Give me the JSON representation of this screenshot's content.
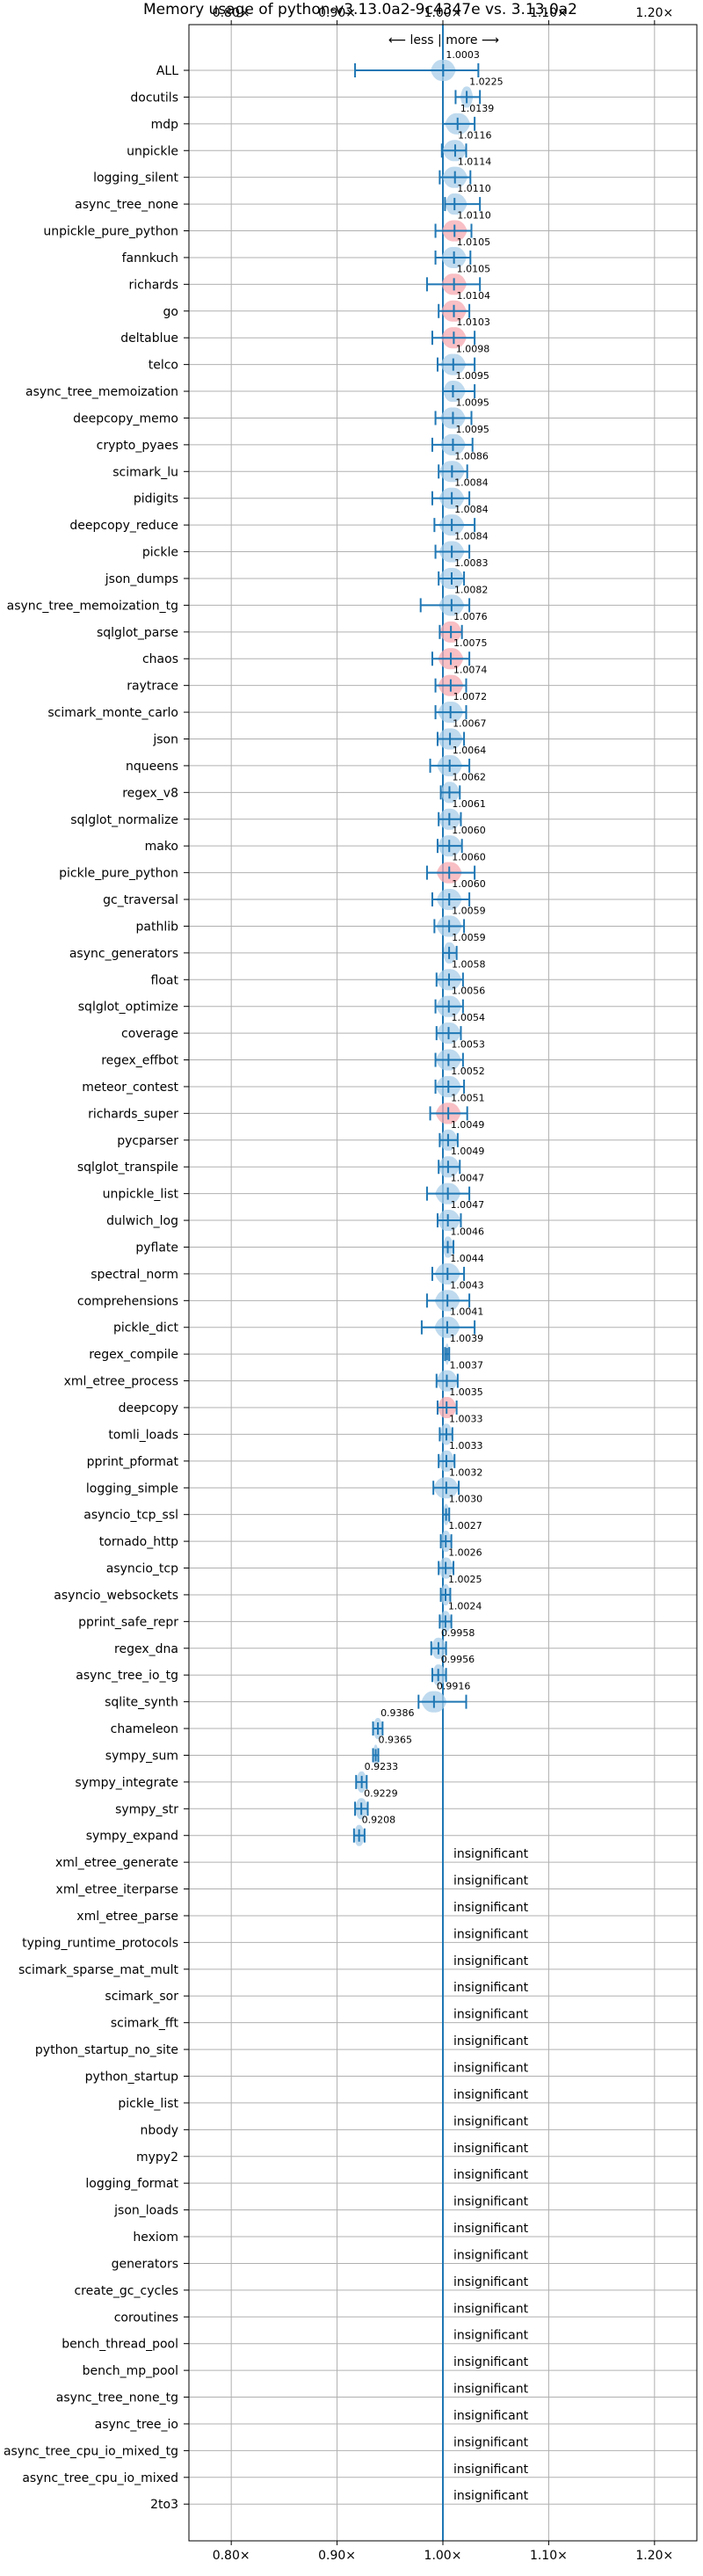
{
  "chart_data": {
    "type": "scatter",
    "title": "Memory usage of python-v3.13.0a2-9c4347e vs. 3.13.0a2",
    "direction_label": "⟵ less | more ⟶",
    "xlim": [
      0.76,
      1.24
    ],
    "xticks": [
      0.8,
      0.9,
      1.0,
      1.1,
      1.2
    ],
    "xtick_labels": [
      "0.80×",
      "0.90×",
      "1.00×",
      "1.10×",
      "1.20×"
    ],
    "grid": true,
    "reference_line": 1.0,
    "marker_color": "#1f77b4",
    "violin_color": "#aacde8",
    "highlight_color": "#f5a9b0",
    "insignificant_label": "insignificant",
    "rows": [
      {
        "name": "ALL",
        "value": 1.0003,
        "label": "1.0003",
        "low": 0.917,
        "high": 1.0335,
        "violin": "blue",
        "spread": 0.012
      },
      {
        "name": "docutils",
        "value": 1.0225,
        "label": "1.0225",
        "low": 1.012,
        "high": 1.035,
        "violin": "blue",
        "spread": 0.006
      },
      {
        "name": "mdp",
        "value": 1.0139,
        "label": "1.0139",
        "low": 1.0,
        "high": 1.03,
        "violin": "blue",
        "spread": 0.012
      },
      {
        "name": "unpickle",
        "value": 1.0116,
        "label": "1.0116",
        "low": 0.999,
        "high": 1.022,
        "violin": "blue",
        "spread": 0.012
      },
      {
        "name": "logging_silent",
        "value": 1.0114,
        "label": "1.0114",
        "low": 0.997,
        "high": 1.026,
        "violin": "blue",
        "spread": 0.012
      },
      {
        "name": "async_tree_none",
        "value": 1.011,
        "label": "1.0110",
        "low": 1.002,
        "high": 1.035,
        "violin": "blue",
        "spread": 0.012
      },
      {
        "name": "unpickle_pure_python",
        "value": 1.011,
        "label": "1.0110",
        "low": 0.993,
        "high": 1.027,
        "violin": "red",
        "spread": 0.012
      },
      {
        "name": "fannkuch",
        "value": 1.0105,
        "label": "1.0105",
        "low": 0.993,
        "high": 1.026,
        "violin": "blue",
        "spread": 0.012
      },
      {
        "name": "richards",
        "value": 1.0105,
        "label": "1.0105",
        "low": 0.985,
        "high": 1.035,
        "violin": "red",
        "spread": 0.012
      },
      {
        "name": "go",
        "value": 1.0104,
        "label": "1.0104",
        "low": 0.996,
        "high": 1.025,
        "violin": "red",
        "spread": 0.012
      },
      {
        "name": "deltablue",
        "value": 1.0103,
        "label": "1.0103",
        "low": 0.99,
        "high": 1.03,
        "violin": "red",
        "spread": 0.012
      },
      {
        "name": "telco",
        "value": 1.0098,
        "label": "1.0098",
        "low": 0.995,
        "high": 1.03,
        "violin": "blue",
        "spread": 0.012
      },
      {
        "name": "async_tree_memoization",
        "value": 1.0095,
        "label": "1.0095",
        "low": 1.0,
        "high": 1.03,
        "violin": "blue",
        "spread": 0.012
      },
      {
        "name": "deepcopy_memo",
        "value": 1.0095,
        "label": "1.0095",
        "low": 0.993,
        "high": 1.027,
        "violin": "blue",
        "spread": 0.012
      },
      {
        "name": "crypto_pyaes",
        "value": 1.0095,
        "label": "1.0095",
        "low": 0.99,
        "high": 1.028,
        "violin": "blue",
        "spread": 0.012
      },
      {
        "name": "scimark_lu",
        "value": 1.0086,
        "label": "1.0086",
        "low": 0.996,
        "high": 1.023,
        "violin": "blue",
        "spread": 0.012
      },
      {
        "name": "pidigits",
        "value": 1.0084,
        "label": "1.0084",
        "low": 0.99,
        "high": 1.025,
        "violin": "blue",
        "spread": 0.012
      },
      {
        "name": "deepcopy_reduce",
        "value": 1.0084,
        "label": "1.0084",
        "low": 0.992,
        "high": 1.03,
        "violin": "blue",
        "spread": 0.012
      },
      {
        "name": "pickle",
        "value": 1.0084,
        "label": "1.0084",
        "low": 0.993,
        "high": 1.025,
        "violin": "blue",
        "spread": 0.012
      },
      {
        "name": "json_dumps",
        "value": 1.0083,
        "label": "1.0083",
        "low": 0.996,
        "high": 1.02,
        "violin": "blue",
        "spread": 0.012
      },
      {
        "name": "async_tree_memoization_tg",
        "value": 1.0082,
        "label": "1.0082",
        "low": 0.979,
        "high": 1.025,
        "violin": "blue",
        "spread": 0.012
      },
      {
        "name": "sqlglot_parse",
        "value": 1.0076,
        "label": "1.0076",
        "low": 0.997,
        "high": 1.018,
        "violin": "red",
        "spread": 0.012
      },
      {
        "name": "chaos",
        "value": 1.0075,
        "label": "1.0075",
        "low": 0.99,
        "high": 1.025,
        "violin": "red",
        "spread": 0.012
      },
      {
        "name": "raytrace",
        "value": 1.0074,
        "label": "1.0074",
        "low": 0.993,
        "high": 1.022,
        "violin": "red",
        "spread": 0.012
      },
      {
        "name": "scimark_monte_carlo",
        "value": 1.0072,
        "label": "1.0072",
        "low": 0.993,
        "high": 1.022,
        "violin": "blue",
        "spread": 0.012
      },
      {
        "name": "json",
        "value": 1.0067,
        "label": "1.0067",
        "low": 0.995,
        "high": 1.02,
        "violin": "blue",
        "spread": 0.012
      },
      {
        "name": "nqueens",
        "value": 1.0064,
        "label": "1.0064",
        "low": 0.988,
        "high": 1.025,
        "violin": "blue",
        "spread": 0.012
      },
      {
        "name": "regex_v8",
        "value": 1.0062,
        "label": "1.0062",
        "low": 0.998,
        "high": 1.016,
        "violin": "blue",
        "spread": 0.012
      },
      {
        "name": "sqlglot_normalize",
        "value": 1.0061,
        "label": "1.0061",
        "low": 0.996,
        "high": 1.017,
        "violin": "blue",
        "spread": 0.012
      },
      {
        "name": "mako",
        "value": 1.006,
        "label": "1.0060",
        "low": 0.995,
        "high": 1.018,
        "violin": "blue",
        "spread": 0.012
      },
      {
        "name": "pickle_pure_python",
        "value": 1.006,
        "label": "1.0060",
        "low": 0.985,
        "high": 1.03,
        "violin": "red",
        "spread": 0.012
      },
      {
        "name": "gc_traversal",
        "value": 1.006,
        "label": "1.0060",
        "low": 0.99,
        "high": 1.025,
        "violin": "blue",
        "spread": 0.012
      },
      {
        "name": "pathlib",
        "value": 1.0059,
        "label": "1.0059",
        "low": 0.992,
        "high": 1.02,
        "violin": "blue",
        "spread": 0.012
      },
      {
        "name": "async_generators",
        "value": 1.0059,
        "label": "1.0059",
        "low": 1.0,
        "high": 1.013,
        "violin": "blue",
        "spread": 0.012
      },
      {
        "name": "float",
        "value": 1.0058,
        "label": "1.0058",
        "low": 0.994,
        "high": 1.019,
        "violin": "blue",
        "spread": 0.012
      },
      {
        "name": "sqlglot_optimize",
        "value": 1.0056,
        "label": "1.0056",
        "low": 0.993,
        "high": 1.019,
        "violin": "blue",
        "spread": 0.012
      },
      {
        "name": "coverage",
        "value": 1.0054,
        "label": "1.0054",
        "low": 0.994,
        "high": 1.017,
        "violin": "blue",
        "spread": 0.012
      },
      {
        "name": "regex_effbot",
        "value": 1.0053,
        "label": "1.0053",
        "low": 0.993,
        "high": 1.019,
        "violin": "blue",
        "spread": 0.012
      },
      {
        "name": "meteor_contest",
        "value": 1.0052,
        "label": "1.0052",
        "low": 0.993,
        "high": 1.02,
        "violin": "blue",
        "spread": 0.012
      },
      {
        "name": "richards_super",
        "value": 1.0051,
        "label": "1.0051",
        "low": 0.988,
        "high": 1.023,
        "violin": "red",
        "spread": 0.012
      },
      {
        "name": "pycparser",
        "value": 1.0049,
        "label": "1.0049",
        "low": 0.997,
        "high": 1.014,
        "violin": "blue",
        "spread": 0.012
      },
      {
        "name": "sqlglot_transpile",
        "value": 1.0049,
        "label": "1.0049",
        "low": 0.996,
        "high": 1.016,
        "violin": "blue",
        "spread": 0.012
      },
      {
        "name": "unpickle_list",
        "value": 1.0047,
        "label": "1.0047",
        "low": 0.985,
        "high": 1.025,
        "violin": "blue",
        "spread": 0.012
      },
      {
        "name": "dulwich_log",
        "value": 1.0047,
        "label": "1.0047",
        "low": 0.995,
        "high": 1.017,
        "violin": "blue",
        "spread": 0.012
      },
      {
        "name": "pyflate",
        "value": 1.0046,
        "label": "1.0046",
        "low": 1.0,
        "high": 1.01,
        "violin": "blue",
        "spread": 0.012
      },
      {
        "name": "spectral_norm",
        "value": 1.0044,
        "label": "1.0044",
        "low": 0.99,
        "high": 1.02,
        "violin": "blue",
        "spread": 0.012
      },
      {
        "name": "comprehensions",
        "value": 1.0043,
        "label": "1.0043",
        "low": 0.985,
        "high": 1.025,
        "violin": "blue",
        "spread": 0.012
      },
      {
        "name": "pickle_dict",
        "value": 1.0041,
        "label": "1.0041",
        "low": 0.98,
        "high": 1.03,
        "violin": "blue",
        "spread": 0.012
      },
      {
        "name": "regex_compile",
        "value": 1.0039,
        "label": "1.0039",
        "low": 1.002,
        "high": 1.006,
        "violin": "blue",
        "spread": 0.012
      },
      {
        "name": "xml_etree_process",
        "value": 1.0037,
        "label": "1.0037",
        "low": 0.994,
        "high": 1.014,
        "violin": "blue",
        "spread": 0.012
      },
      {
        "name": "deepcopy",
        "value": 1.0035,
        "label": "1.0035",
        "low": 0.995,
        "high": 1.013,
        "violin": "red",
        "spread": 0.012
      },
      {
        "name": "tomli_loads",
        "value": 1.0033,
        "label": "1.0033",
        "low": 0.997,
        "high": 1.009,
        "violin": "blue",
        "spread": 0.012
      },
      {
        "name": "pprint_pformat",
        "value": 1.0033,
        "label": "1.0033",
        "low": 0.996,
        "high": 1.011,
        "violin": "blue",
        "spread": 0.012
      },
      {
        "name": "logging_simple",
        "value": 1.0032,
        "label": "1.0032",
        "low": 0.991,
        "high": 1.015,
        "violin": "blue",
        "spread": 0.012
      },
      {
        "name": "asyncio_tcp_ssl",
        "value": 1.003,
        "label": "1.0030",
        "low": 1.0,
        "high": 1.006,
        "violin": "blue",
        "spread": 0.012
      },
      {
        "name": "tornado_http",
        "value": 1.0027,
        "label": "1.0027",
        "low": 0.998,
        "high": 1.008,
        "violin": "blue",
        "spread": 0.012
      },
      {
        "name": "asyncio_tcp",
        "value": 1.0026,
        "label": "1.0026",
        "low": 0.996,
        "high": 1.01,
        "violin": "blue",
        "spread": 0.012
      },
      {
        "name": "asyncio_websockets",
        "value": 1.0025,
        "label": "1.0025",
        "low": 0.998,
        "high": 1.007,
        "violin": "blue",
        "spread": 0.012
      },
      {
        "name": "pprint_safe_repr",
        "value": 1.0024,
        "label": "1.0024",
        "low": 0.997,
        "high": 1.008,
        "violin": "blue",
        "spread": 0.012
      },
      {
        "name": "regex_dna",
        "value": 0.9958,
        "label": "0.9958",
        "low": 0.989,
        "high": 1.003,
        "violin": "blue",
        "spread": 0.012
      },
      {
        "name": "async_tree_io_tg",
        "value": 0.9956,
        "label": "0.9956",
        "low": 0.99,
        "high": 1.003,
        "violin": "blue",
        "spread": 0.012
      },
      {
        "name": "sqlite_synth",
        "value": 0.9916,
        "label": "0.9916",
        "low": 0.977,
        "high": 1.022,
        "violin": "blue",
        "spread": 0.012
      },
      {
        "name": "chameleon",
        "value": 0.9386,
        "label": "0.9386",
        "low": 0.934,
        "high": 0.943,
        "violin": "blue",
        "spread": 0.012
      },
      {
        "name": "sympy_sum",
        "value": 0.9365,
        "label": "0.9365",
        "low": 0.934,
        "high": 0.939,
        "violin": "blue",
        "spread": 0.012
      },
      {
        "name": "sympy_integrate",
        "value": 0.9233,
        "label": "0.9233",
        "low": 0.918,
        "high": 0.928,
        "violin": "blue",
        "spread": 0.012
      },
      {
        "name": "sympy_str",
        "value": 0.9229,
        "label": "0.9229",
        "low": 0.917,
        "high": 0.929,
        "violin": "blue",
        "spread": 0.012
      },
      {
        "name": "sympy_expand",
        "value": 0.9208,
        "label": "0.9208",
        "low": 0.916,
        "high": 0.926,
        "violin": "blue",
        "spread": 0.012
      },
      {
        "name": "xml_etree_generate",
        "insignificant": true
      },
      {
        "name": "xml_etree_iterparse",
        "insignificant": true
      },
      {
        "name": "xml_etree_parse",
        "insignificant": true
      },
      {
        "name": "typing_runtime_protocols",
        "insignificant": true
      },
      {
        "name": "scimark_sparse_mat_mult",
        "insignificant": true
      },
      {
        "name": "scimark_sor",
        "insignificant": true
      },
      {
        "name": "scimark_fft",
        "insignificant": true
      },
      {
        "name": "python_startup_no_site",
        "insignificant": true
      },
      {
        "name": "python_startup",
        "insignificant": true
      },
      {
        "name": "pickle_list",
        "insignificant": true
      },
      {
        "name": "nbody",
        "insignificant": true
      },
      {
        "name": "mypy2",
        "insignificant": true
      },
      {
        "name": "logging_format",
        "insignificant": true
      },
      {
        "name": "json_loads",
        "insignificant": true
      },
      {
        "name": "hexiom",
        "insignificant": true
      },
      {
        "name": "generators",
        "insignificant": true
      },
      {
        "name": "create_gc_cycles",
        "insignificant": true
      },
      {
        "name": "coroutines",
        "insignificant": true
      },
      {
        "name": "bench_thread_pool",
        "insignificant": true
      },
      {
        "name": "bench_mp_pool",
        "insignificant": true
      },
      {
        "name": "async_tree_none_tg",
        "insignificant": true
      },
      {
        "name": "async_tree_io",
        "insignificant": true
      },
      {
        "name": "async_tree_cpu_io_mixed_tg",
        "insignificant": true
      },
      {
        "name": "async_tree_cpu_io_mixed",
        "insignificant": true
      },
      {
        "name": "2to3",
        "insignificant": true
      }
    ]
  }
}
